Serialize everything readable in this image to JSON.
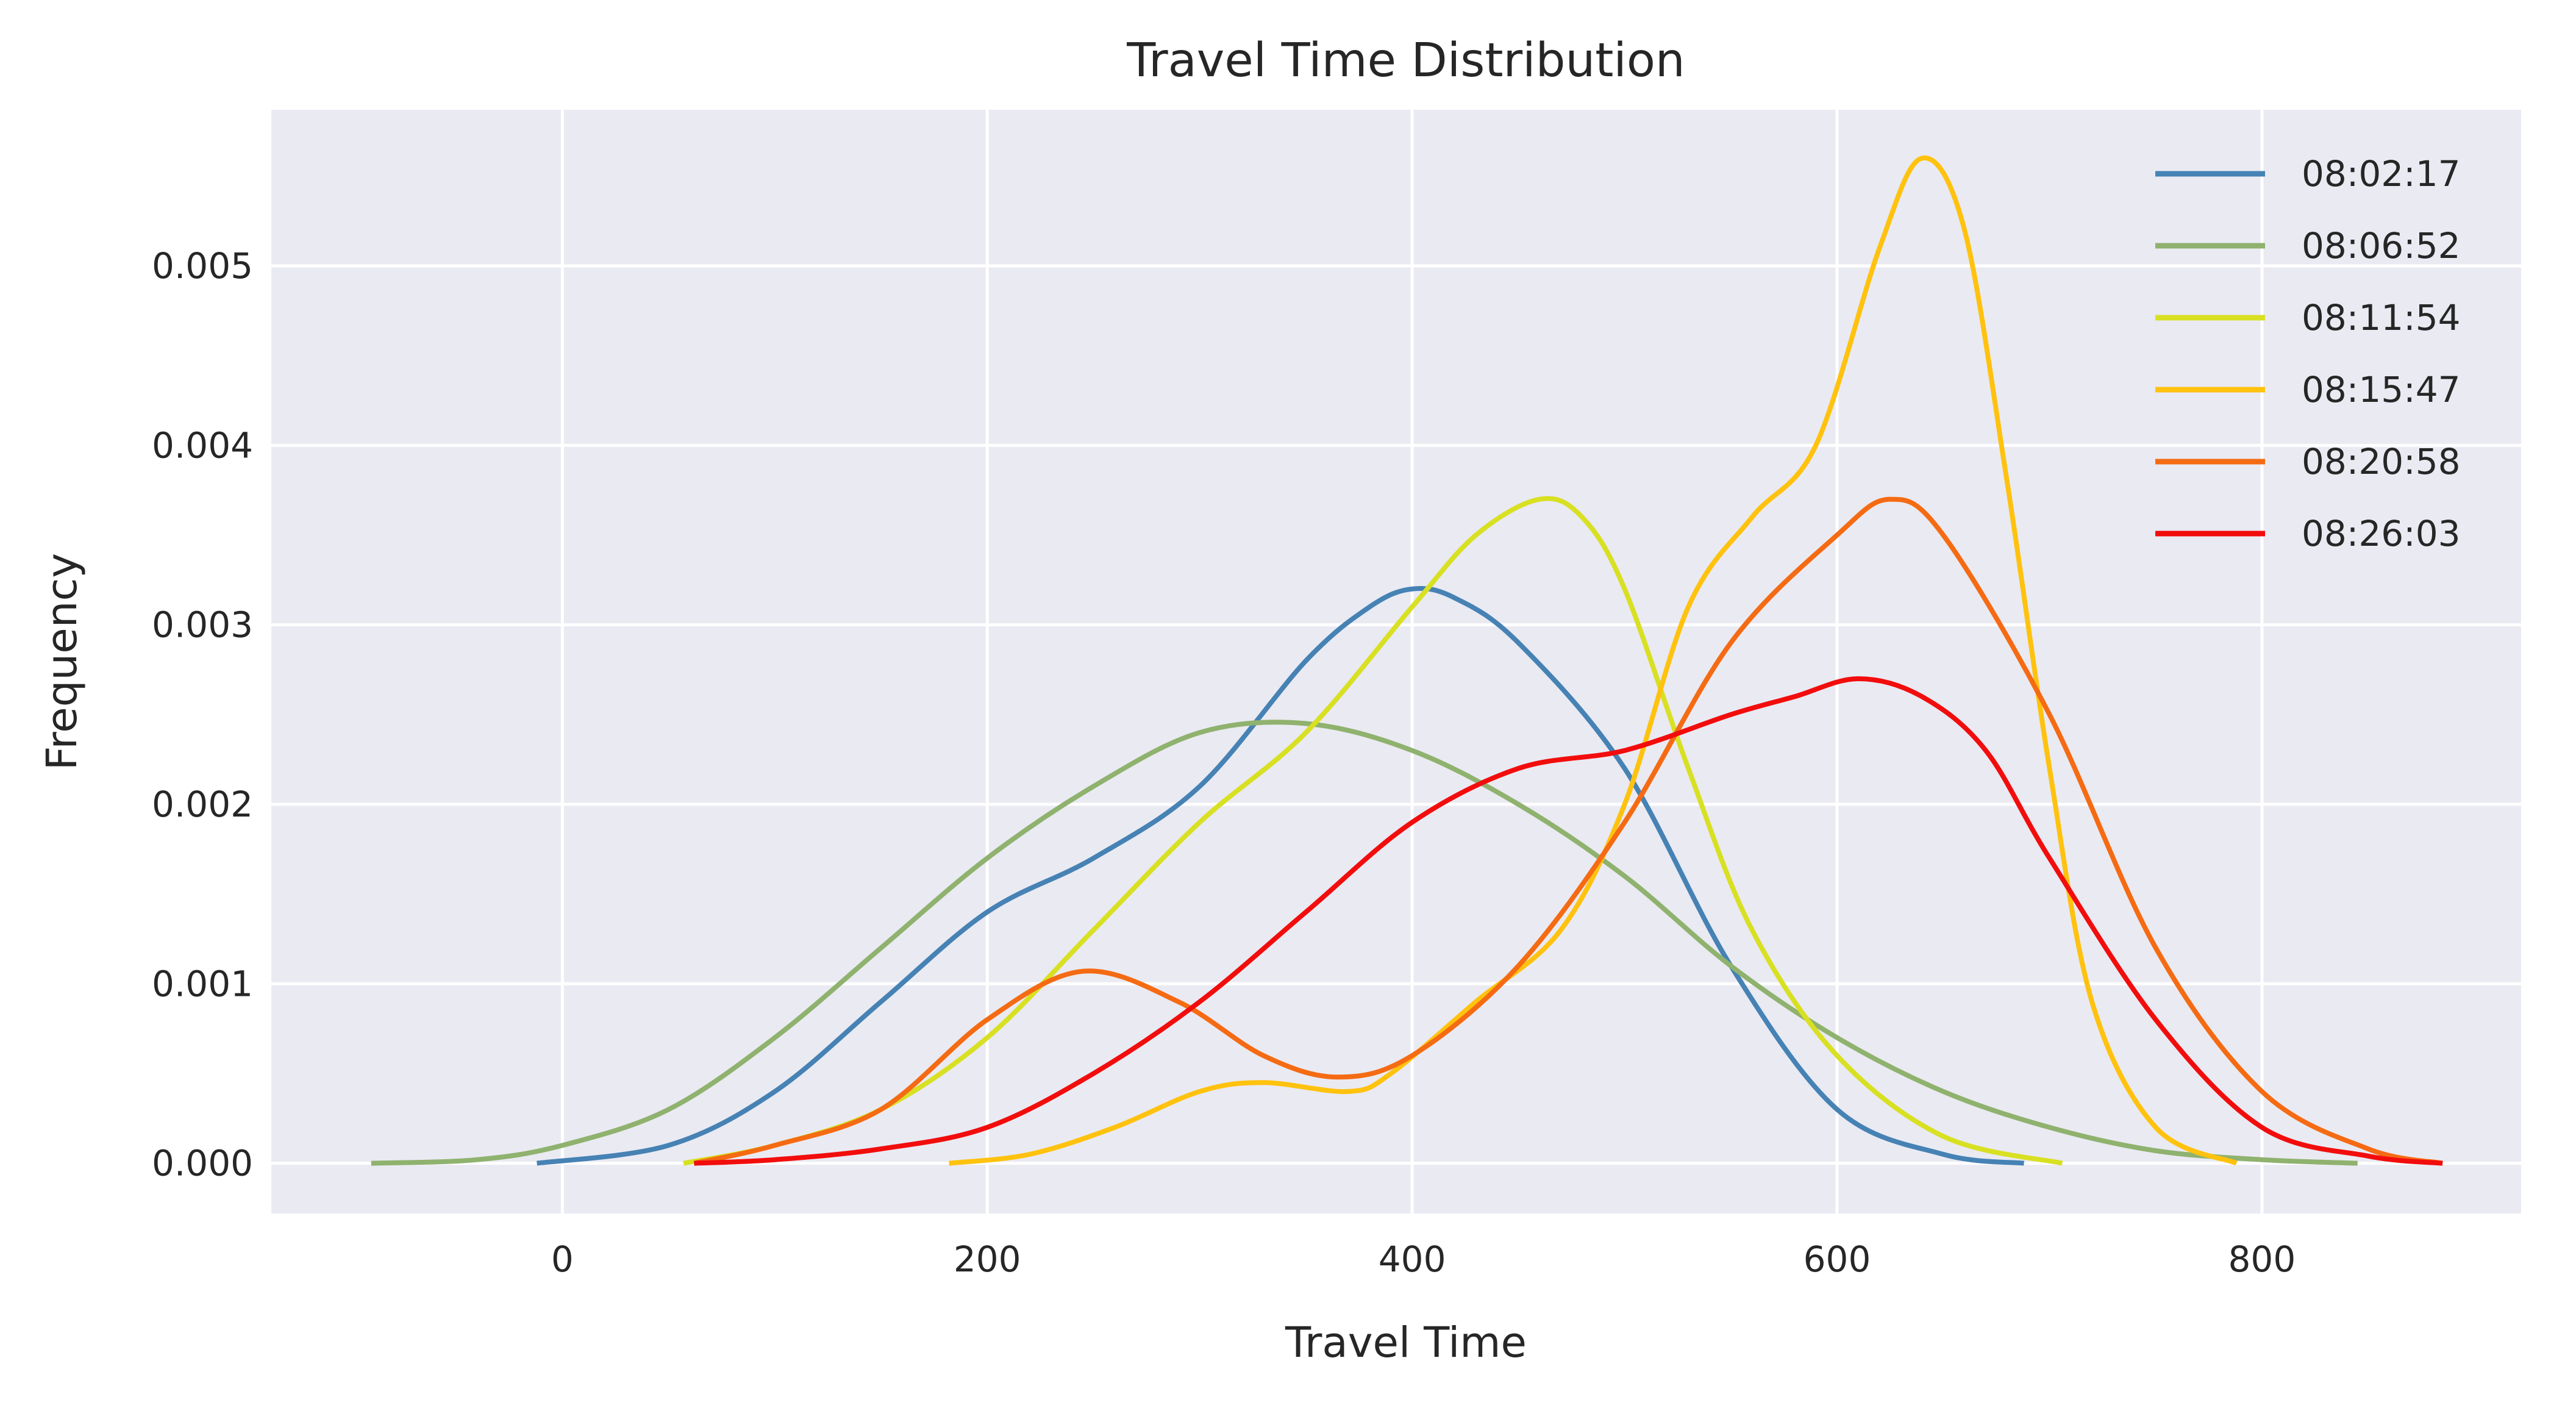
{
  "chart_data": {
    "type": "line",
    "title": "Travel Time Distribution",
    "xlabel": "Travel Time",
    "ylabel": "Frequency",
    "xlim": [
      -137,
      922
    ],
    "ylim": [
      -0.00028,
      0.00587
    ],
    "x_ticks": [
      0,
      200,
      400,
      600,
      800
    ],
    "x_tick_labels": [
      "0",
      "200",
      "400",
      "600",
      "800"
    ],
    "y_ticks": [
      0,
      0.001,
      0.002,
      0.003,
      0.004,
      0.005
    ],
    "y_tick_labels": [
      "0.000",
      "0.001",
      "0.002",
      "0.003",
      "0.004",
      "0.005"
    ],
    "grid": true,
    "background": "#eaeaf2",
    "legend_position": "top-right",
    "series": [
      {
        "name": "08:02:17",
        "color": "#4682b4",
        "x": [
          -12,
          50,
          100,
          150,
          200,
          250,
          300,
          350,
          380,
          400,
          420,
          450,
          500,
          550,
          600,
          650,
          688
        ],
        "y": [
          0.0,
          0.0001,
          0.0004,
          0.0009,
          0.0014,
          0.0017,
          0.0021,
          0.0028,
          0.0031,
          0.0032,
          0.00315,
          0.0029,
          0.0022,
          0.0011,
          0.0003,
          5e-05,
          0.0
        ]
      },
      {
        "name": "08:06:52",
        "color": "#8fb26e",
        "x": [
          -90,
          -40,
          0,
          50,
          100,
          150,
          200,
          250,
          300,
          350,
          400,
          450,
          500,
          550,
          600,
          650,
          700,
          750,
          800,
          845
        ],
        "y": [
          0.0,
          2e-05,
          0.0001,
          0.0003,
          0.0007,
          0.0012,
          0.0017,
          0.0021,
          0.0024,
          0.00245,
          0.0023,
          0.002,
          0.0016,
          0.0011,
          0.0007,
          0.0004,
          0.0002,
          7e-05,
          2e-05,
          0.0
        ]
      },
      {
        "name": "08:11:54",
        "color": "#d8e022",
        "x": [
          57,
          100,
          150,
          200,
          250,
          300,
          350,
          400,
          430,
          460,
          480,
          500,
          530,
          560,
          600,
          650,
          706
        ],
        "y": [
          0.0,
          0.0001,
          0.0003,
          0.0007,
          0.0013,
          0.0019,
          0.0024,
          0.0031,
          0.0035,
          0.0037,
          0.0036,
          0.0032,
          0.0022,
          0.0013,
          0.0006,
          0.00015,
          0.0
        ]
      },
      {
        "name": "08:15:47",
        "color": "#ffc20e",
        "x": [
          182,
          220,
          260,
          300,
          330,
          370,
          390,
          430,
          470,
          500,
          530,
          560,
          590,
          620,
          640,
          660,
          680,
          700,
          720,
          750,
          788
        ],
        "y": [
          0.0,
          5e-05,
          0.0002,
          0.0004,
          0.00045,
          0.0004,
          0.0005,
          0.0009,
          0.0013,
          0.002,
          0.0031,
          0.0036,
          0.004,
          0.0051,
          0.0056,
          0.0052,
          0.0038,
          0.0022,
          0.0009,
          0.0002,
          0.0
        ]
      },
      {
        "name": "08:20:58",
        "color": "#f56b13",
        "x": [
          62,
          100,
          150,
          200,
          245,
          290,
          330,
          365,
          400,
          450,
          500,
          550,
          600,
          625,
          650,
          700,
          750,
          800,
          850,
          885
        ],
        "y": [
          0.0,
          0.0001,
          0.0003,
          0.0008,
          0.00107,
          0.0009,
          0.0006,
          0.00048,
          0.0006,
          0.0011,
          0.0019,
          0.0029,
          0.0035,
          0.0037,
          0.0035,
          0.0025,
          0.0012,
          0.0004,
          8e-05,
          0.0
        ]
      },
      {
        "name": "08:26:03",
        "color": "#f20d0d",
        "x": [
          62,
          100,
          150,
          200,
          250,
          300,
          350,
          400,
          450,
          500,
          550,
          580,
          610,
          640,
          670,
          700,
          750,
          800,
          850,
          885
        ],
        "y": [
          0.0,
          2e-05,
          8e-05,
          0.0002,
          0.0005,
          0.0009,
          0.0014,
          0.0019,
          0.0022,
          0.0023,
          0.0025,
          0.0026,
          0.0027,
          0.0026,
          0.0023,
          0.0017,
          0.0008,
          0.0002,
          4e-05,
          0.0
        ]
      }
    ]
  }
}
